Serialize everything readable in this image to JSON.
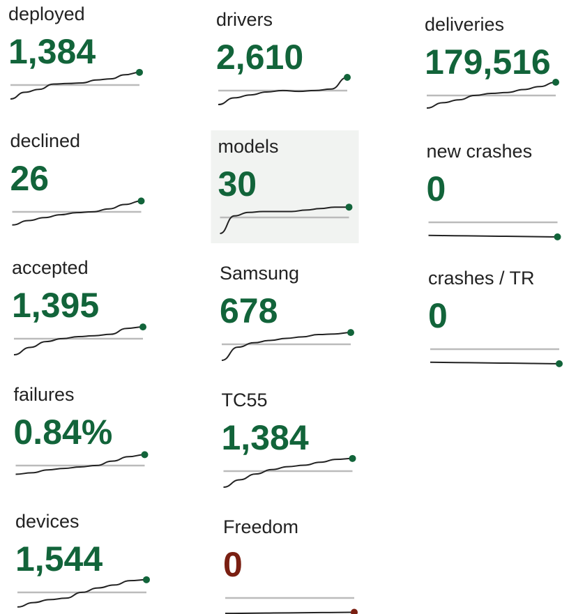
{
  "columns": [
    [
      {
        "label": "deployed",
        "value": "1,384",
        "color": "#12643a",
        "spark": [
          7,
          30,
          40,
          58,
          60,
          62,
          72,
          76,
          90,
          98
        ]
      },
      {
        "label": "declined",
        "value": "26",
        "color": "#12643a",
        "spark": [
          10,
          25,
          35,
          45,
          52,
          55,
          65,
          80,
          92
        ]
      },
      {
        "label": "accepted",
        "value": "1,395",
        "color": "#12643a",
        "spark": [
          0,
          25,
          45,
          55,
          62,
          65,
          70,
          90,
          95
        ]
      },
      {
        "label": "failures",
        "value": "0.84%",
        "color": "#12643a",
        "spark": [
          25,
          30,
          40,
          45,
          50,
          55,
          70,
          85,
          92
        ]
      },
      {
        "label": "devices",
        "value": "1,544",
        "color": "#12643a",
        "spark": [
          5,
          20,
          30,
          35,
          55,
          70,
          80,
          95,
          98
        ]
      }
    ],
    [
      {
        "label": "drivers",
        "value": "2,610",
        "color": "#12643a",
        "spark": [
          7,
          30,
          40,
          50,
          55,
          52,
          55,
          60,
          100
        ]
      },
      {
        "label": "models",
        "value": "30",
        "color": "#12643a",
        "highlighted": true,
        "spark": [
          0,
          60,
          72,
          75,
          75,
          75,
          80,
          85,
          90,
          90
        ]
      },
      {
        "label": "Samsung",
        "value": "678",
        "color": "#12643a",
        "spark": [
          0,
          45,
          60,
          68,
          75,
          80,
          88,
          90,
          95
        ]
      },
      {
        "label": "TC55",
        "value": "1,384",
        "color": "#12643a",
        "spark": [
          0,
          25,
          45,
          60,
          70,
          75,
          85,
          95,
          98
        ]
      },
      {
        "label": "Freedom",
        "value": "0",
        "color": "#7a1f12",
        "spark": [
          2,
          3,
          4,
          5,
          6
        ]
      }
    ],
    [
      {
        "label": "deliveries",
        "value": "179,516",
        "color": "#12643a",
        "spark": [
          12,
          30,
          40,
          55,
          62,
          65,
          75,
          85,
          100
        ]
      },
      {
        "label": "new crashes",
        "value": "0",
        "color": "#12643a",
        "spark": [
          10,
          9,
          8,
          7,
          6,
          5
        ]
      },
      {
        "label": "crashes / TR",
        "value": "0",
        "color": "#12643a",
        "spark": [
          10,
          9,
          8,
          7,
          6,
          5
        ]
      }
    ]
  ]
}
